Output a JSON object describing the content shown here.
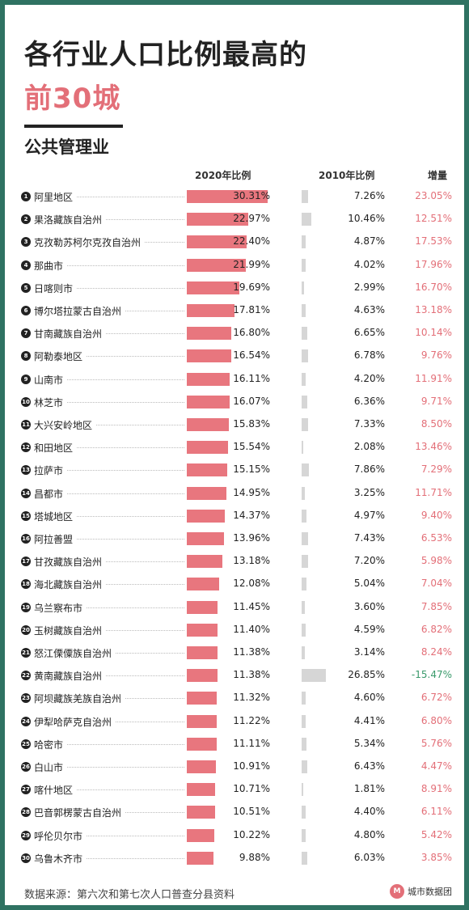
{
  "title_line1": "各行业人口比例最高的",
  "title_line2": "前30城",
  "subtitle": "公共管理业",
  "columns": {
    "c2020": "2020年比例",
    "c2010": "2010年比例",
    "increase": "增量"
  },
  "footer": "数据来源：第六次和第七次人口普查分县资料",
  "brand": {
    "name": "城市数据团",
    "logo": "M"
  },
  "colors": {
    "bar2020": "#e8767e",
    "bar2010": "#d6d6d6",
    "positive": "#e36f78",
    "negative": "#3a9a6b",
    "frame": "#2f7262"
  },
  "chart_data": {
    "type": "bar",
    "series": [
      {
        "name": "2020年比例"
      },
      {
        "name": "2010年比例"
      },
      {
        "name": "增量"
      }
    ],
    "rows": [
      {
        "rank": "1",
        "city": "阿里地区",
        "v2020": 30.31,
        "v2020_label": "30.31%",
        "v2010": 7.26,
        "v2010_label": "7.26%",
        "inc": 23.05,
        "inc_label": "23.05%"
      },
      {
        "rank": "2",
        "city": "果洛藏族自治州",
        "v2020": 22.97,
        "v2020_label": "22.97%",
        "v2010": 10.46,
        "v2010_label": "10.46%",
        "inc": 12.51,
        "inc_label": "12.51%"
      },
      {
        "rank": "3",
        "city": "克孜勒苏柯尔克孜自治州",
        "v2020": 22.4,
        "v2020_label": "22.40%",
        "v2010": 4.87,
        "v2010_label": "4.87%",
        "inc": 17.53,
        "inc_label": "17.53%"
      },
      {
        "rank": "4",
        "city": "那曲市",
        "v2020": 21.99,
        "v2020_label": "21.99%",
        "v2010": 4.02,
        "v2010_label": "4.02%",
        "inc": 17.96,
        "inc_label": "17.96%"
      },
      {
        "rank": "5",
        "city": "日喀则市",
        "v2020": 19.69,
        "v2020_label": "19.69%",
        "v2010": 2.99,
        "v2010_label": "2.99%",
        "inc": 16.7,
        "inc_label": "16.70%"
      },
      {
        "rank": "6",
        "city": "博尔塔拉蒙古自治州",
        "v2020": 17.81,
        "v2020_label": "17.81%",
        "v2010": 4.63,
        "v2010_label": "4.63%",
        "inc": 13.18,
        "inc_label": "13.18%"
      },
      {
        "rank": "7",
        "city": "甘南藏族自治州",
        "v2020": 16.8,
        "v2020_label": "16.80%",
        "v2010": 6.65,
        "v2010_label": "6.65%",
        "inc": 10.14,
        "inc_label": "10.14%"
      },
      {
        "rank": "8",
        "city": "阿勒泰地区",
        "v2020": 16.54,
        "v2020_label": "16.54%",
        "v2010": 6.78,
        "v2010_label": "6.78%",
        "inc": 9.76,
        "inc_label": "9.76%"
      },
      {
        "rank": "9",
        "city": "山南市",
        "v2020": 16.11,
        "v2020_label": "16.11%",
        "v2010": 4.2,
        "v2010_label": "4.20%",
        "inc": 11.91,
        "inc_label": "11.91%"
      },
      {
        "rank": "10",
        "city": "林芝市",
        "v2020": 16.07,
        "v2020_label": "16.07%",
        "v2010": 6.36,
        "v2010_label": "6.36%",
        "inc": 9.71,
        "inc_label": "9.71%"
      },
      {
        "rank": "11",
        "city": "大兴安岭地区",
        "v2020": 15.83,
        "v2020_label": "15.83%",
        "v2010": 7.33,
        "v2010_label": "7.33%",
        "inc": 8.5,
        "inc_label": "8.50%"
      },
      {
        "rank": "12",
        "city": "和田地区",
        "v2020": 15.54,
        "v2020_label": "15.54%",
        "v2010": 2.08,
        "v2010_label": "2.08%",
        "inc": 13.46,
        "inc_label": "13.46%"
      },
      {
        "rank": "13",
        "city": "拉萨市",
        "v2020": 15.15,
        "v2020_label": "15.15%",
        "v2010": 7.86,
        "v2010_label": "7.86%",
        "inc": 7.29,
        "inc_label": "7.29%"
      },
      {
        "rank": "14",
        "city": "昌都市",
        "v2020": 14.95,
        "v2020_label": "14.95%",
        "v2010": 3.25,
        "v2010_label": "3.25%",
        "inc": 11.71,
        "inc_label": "11.71%"
      },
      {
        "rank": "15",
        "city": "塔城地区",
        "v2020": 14.37,
        "v2020_label": "14.37%",
        "v2010": 4.97,
        "v2010_label": "4.97%",
        "inc": 9.4,
        "inc_label": "9.40%"
      },
      {
        "rank": "16",
        "city": "阿拉善盟",
        "v2020": 13.96,
        "v2020_label": "13.96%",
        "v2010": 7.43,
        "v2010_label": "7.43%",
        "inc": 6.53,
        "inc_label": "6.53%"
      },
      {
        "rank": "17",
        "city": "甘孜藏族自治州",
        "v2020": 13.18,
        "v2020_label": "13.18%",
        "v2010": 7.2,
        "v2010_label": "7.20%",
        "inc": 5.98,
        "inc_label": "5.98%"
      },
      {
        "rank": "18",
        "city": "海北藏族自治州",
        "v2020": 12.08,
        "v2020_label": "12.08%",
        "v2010": 5.04,
        "v2010_label": "5.04%",
        "inc": 7.04,
        "inc_label": "7.04%"
      },
      {
        "rank": "19",
        "city": "乌兰察布市",
        "v2020": 11.45,
        "v2020_label": "11.45%",
        "v2010": 3.6,
        "v2010_label": "3.60%",
        "inc": 7.85,
        "inc_label": "7.85%"
      },
      {
        "rank": "20",
        "city": "玉树藏族自治州",
        "v2020": 11.4,
        "v2020_label": "11.40%",
        "v2010": 4.59,
        "v2010_label": "4.59%",
        "inc": 6.82,
        "inc_label": "6.82%"
      },
      {
        "rank": "21",
        "city": "怒江傈僳族自治州",
        "v2020": 11.38,
        "v2020_label": "11.38%",
        "v2010": 3.14,
        "v2010_label": "3.14%",
        "inc": 8.24,
        "inc_label": "8.24%"
      },
      {
        "rank": "22",
        "city": "黄南藏族自治州",
        "v2020": 11.38,
        "v2020_label": "11.38%",
        "v2010": 26.85,
        "v2010_label": "26.85%",
        "inc": -15.47,
        "inc_label": "-15.47%"
      },
      {
        "rank": "23",
        "city": "阿坝藏族羌族自治州",
        "v2020": 11.32,
        "v2020_label": "11.32%",
        "v2010": 4.6,
        "v2010_label": "4.60%",
        "inc": 6.72,
        "inc_label": "6.72%"
      },
      {
        "rank": "24",
        "city": "伊犁哈萨克自治州",
        "v2020": 11.22,
        "v2020_label": "11.22%",
        "v2010": 4.41,
        "v2010_label": "4.41%",
        "inc": 6.8,
        "inc_label": "6.80%"
      },
      {
        "rank": "25",
        "city": "哈密市",
        "v2020": 11.11,
        "v2020_label": "11.11%",
        "v2010": 5.34,
        "v2010_label": "5.34%",
        "inc": 5.76,
        "inc_label": "5.76%"
      },
      {
        "rank": "26",
        "city": "白山市",
        "v2020": 10.91,
        "v2020_label": "10.91%",
        "v2010": 6.43,
        "v2010_label": "6.43%",
        "inc": 4.47,
        "inc_label": "4.47%"
      },
      {
        "rank": "27",
        "city": "喀什地区",
        "v2020": 10.71,
        "v2020_label": "10.71%",
        "v2010": 1.81,
        "v2010_label": "1.81%",
        "inc": 8.91,
        "inc_label": "8.91%"
      },
      {
        "rank": "28",
        "city": "巴音郭楞蒙古自治州",
        "v2020": 10.51,
        "v2020_label": "10.51%",
        "v2010": 4.4,
        "v2010_label": "4.40%",
        "inc": 6.11,
        "inc_label": "6.11%"
      },
      {
        "rank": "29",
        "city": "呼伦贝尔市",
        "v2020": 10.22,
        "v2020_label": "10.22%",
        "v2010": 4.8,
        "v2010_label": "4.80%",
        "inc": 5.42,
        "inc_label": "5.42%"
      },
      {
        "rank": "30",
        "city": "乌鲁木齐市",
        "v2020": 9.88,
        "v2020_label": "9.88%",
        "v2010": 6.03,
        "v2010_label": "6.03%",
        "inc": 3.85,
        "inc_label": "3.85%"
      }
    ]
  }
}
